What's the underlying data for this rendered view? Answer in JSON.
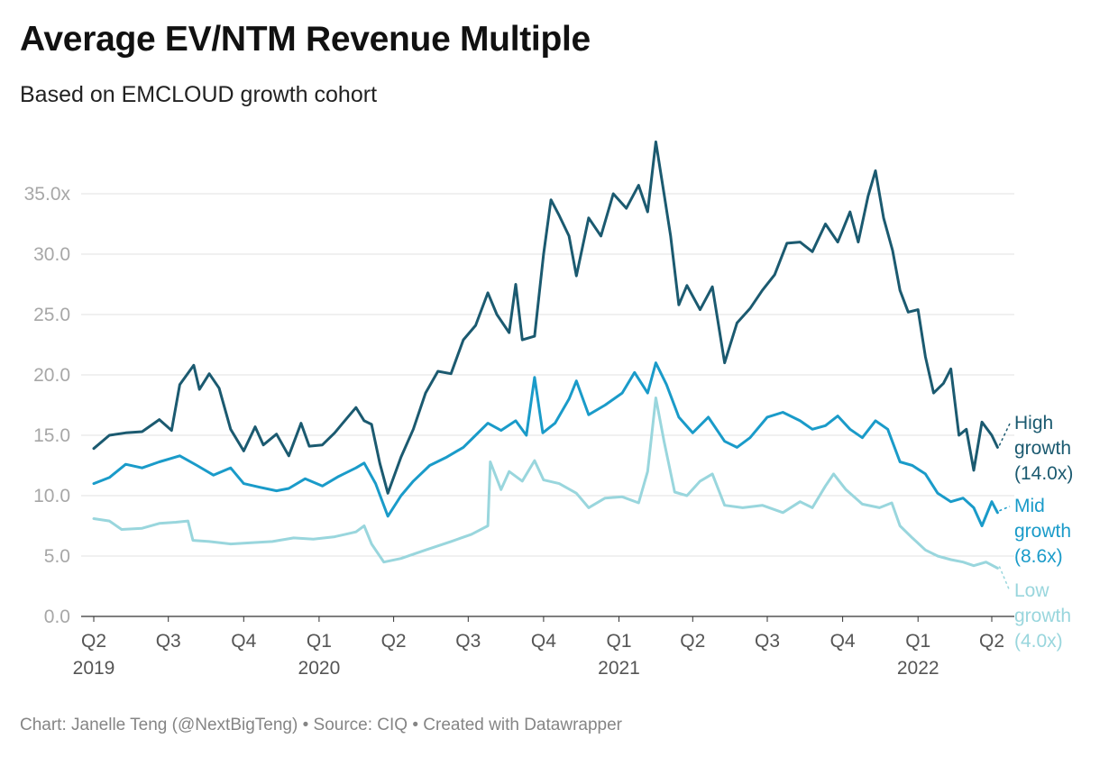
{
  "header": {
    "title": "Average EV/NTM Revenue Multiple",
    "subtitle": "Based on EMCLOUD growth cohort"
  },
  "footer": {
    "text": "Chart: Janelle Teng (@NextBigTeng) • Source: CIQ • Created with Datawrapper"
  },
  "chart_data": {
    "type": "line",
    "title": "Average EV/NTM Revenue Multiple",
    "subtitle": "Based on EMCLOUD growth cohort",
    "xlabel": "",
    "ylabel": "",
    "ylim": [
      0,
      35
    ],
    "xlim": [
      "2019-04-01",
      "2022-06-01"
    ],
    "grid": true,
    "legend": "direct labels at right end of lines",
    "y_ticks": [
      "0.0",
      "5.0",
      "10.0",
      "15.0",
      "20.0",
      "25.0",
      "30.0",
      "35.0x"
    ],
    "y_tick_values": [
      0,
      5,
      10,
      15,
      20,
      25,
      30,
      35
    ],
    "x_ticks": [
      {
        "date": "2019-04-01",
        "quarter": "Q2",
        "year": "2019"
      },
      {
        "date": "2019-07-01",
        "quarter": "Q3",
        "year": ""
      },
      {
        "date": "2019-10-01",
        "quarter": "Q4",
        "year": ""
      },
      {
        "date": "2020-01-01",
        "quarter": "Q1",
        "year": "2020"
      },
      {
        "date": "2020-04-01",
        "quarter": "Q2",
        "year": ""
      },
      {
        "date": "2020-07-01",
        "quarter": "Q3",
        "year": ""
      },
      {
        "date": "2020-10-01",
        "quarter": "Q4",
        "year": ""
      },
      {
        "date": "2021-01-01",
        "quarter": "Q1",
        "year": "2021"
      },
      {
        "date": "2021-04-01",
        "quarter": "Q2",
        "year": ""
      },
      {
        "date": "2021-07-01",
        "quarter": "Q3",
        "year": ""
      },
      {
        "date": "2021-10-01",
        "quarter": "Q4",
        "year": ""
      },
      {
        "date": "2022-01-01",
        "quarter": "Q1",
        "year": "2022"
      },
      {
        "date": "2022-04-01",
        "quarter": "Q2",
        "year": ""
      }
    ],
    "series": [
      {
        "name": "High growth (14.0x)",
        "label_lines": [
          "High",
          "growth",
          "(14.0x)"
        ],
        "color": "#1b5a70",
        "points": [
          [
            "2019-04-01",
            13.9
          ],
          [
            "2019-04-20",
            15.0
          ],
          [
            "2019-05-10",
            15.2
          ],
          [
            "2019-05-30",
            15.3
          ],
          [
            "2019-06-20",
            16.3
          ],
          [
            "2019-07-05",
            15.4
          ],
          [
            "2019-07-15",
            19.2
          ],
          [
            "2019-08-01",
            20.8
          ],
          [
            "2019-08-08",
            18.8
          ],
          [
            "2019-08-20",
            20.1
          ],
          [
            "2019-09-01",
            18.9
          ],
          [
            "2019-09-15",
            15.5
          ],
          [
            "2019-10-01",
            13.7
          ],
          [
            "2019-10-15",
            15.7
          ],
          [
            "2019-10-25",
            14.2
          ],
          [
            "2019-11-10",
            15.1
          ],
          [
            "2019-11-25",
            13.3
          ],
          [
            "2019-12-10",
            16.0
          ],
          [
            "2019-12-20",
            14.1
          ],
          [
            "2020-01-05",
            14.2
          ],
          [
            "2020-01-20",
            15.2
          ],
          [
            "2020-02-05",
            16.5
          ],
          [
            "2020-02-15",
            17.3
          ],
          [
            "2020-02-25",
            16.2
          ],
          [
            "2020-03-05",
            15.9
          ],
          [
            "2020-03-15",
            12.7
          ],
          [
            "2020-03-25",
            10.2
          ],
          [
            "2020-04-10",
            13.2
          ],
          [
            "2020-04-25",
            15.5
          ],
          [
            "2020-05-10",
            18.5
          ],
          [
            "2020-05-25",
            20.3
          ],
          [
            "2020-06-10",
            20.1
          ],
          [
            "2020-06-25",
            22.9
          ],
          [
            "2020-07-10",
            24.1
          ],
          [
            "2020-07-25",
            26.8
          ],
          [
            "2020-08-05",
            25.0
          ],
          [
            "2020-08-20",
            23.5
          ],
          [
            "2020-08-28",
            27.5
          ],
          [
            "2020-09-05",
            22.9
          ],
          [
            "2020-09-20",
            23.2
          ],
          [
            "2020-10-01",
            30.0
          ],
          [
            "2020-10-10",
            34.5
          ],
          [
            "2020-10-20",
            33.2
          ],
          [
            "2020-11-01",
            31.5
          ],
          [
            "2020-11-10",
            28.2
          ],
          [
            "2020-11-25",
            33.0
          ],
          [
            "2020-12-10",
            31.5
          ],
          [
            "2020-12-25",
            35.0
          ],
          [
            "2021-01-10",
            33.8
          ],
          [
            "2021-01-25",
            35.7
          ],
          [
            "2021-02-05",
            33.5
          ],
          [
            "2021-02-15",
            39.3
          ],
          [
            "2021-02-25",
            35.0
          ],
          [
            "2021-03-05",
            31.5
          ],
          [
            "2021-03-15",
            25.8
          ],
          [
            "2021-03-25",
            27.4
          ],
          [
            "2021-04-10",
            25.4
          ],
          [
            "2021-04-25",
            27.3
          ],
          [
            "2021-05-10",
            21.0
          ],
          [
            "2021-05-25",
            24.3
          ],
          [
            "2021-06-10",
            25.5
          ],
          [
            "2021-06-25",
            27.0
          ],
          [
            "2021-07-10",
            28.3
          ],
          [
            "2021-07-25",
            30.9
          ],
          [
            "2021-08-10",
            31.0
          ],
          [
            "2021-08-25",
            30.2
          ],
          [
            "2021-09-10",
            32.5
          ],
          [
            "2021-09-25",
            31.0
          ],
          [
            "2021-10-10",
            33.5
          ],
          [
            "2021-10-20",
            31.0
          ],
          [
            "2021-11-01",
            34.8
          ],
          [
            "2021-11-10",
            36.9
          ],
          [
            "2021-11-20",
            33.0
          ],
          [
            "2021-12-01",
            30.3
          ],
          [
            "2021-12-10",
            27.0
          ],
          [
            "2021-12-20",
            25.2
          ],
          [
            "2022-01-01",
            25.4
          ],
          [
            "2022-01-10",
            21.5
          ],
          [
            "2022-01-20",
            18.5
          ],
          [
            "2022-02-01",
            19.3
          ],
          [
            "2022-02-10",
            20.5
          ],
          [
            "2022-02-20",
            15.0
          ],
          [
            "2022-03-01",
            15.5
          ],
          [
            "2022-03-10",
            12.1
          ],
          [
            "2022-03-20",
            16.1
          ],
          [
            "2022-04-01",
            15.0
          ],
          [
            "2022-04-08",
            14.0
          ]
        ]
      },
      {
        "name": "Mid growth (8.6x)",
        "label_lines": [
          "Mid",
          "growth",
          "(8.6x)"
        ],
        "color": "#1a9bc9",
        "points": [
          [
            "2019-04-01",
            11.0
          ],
          [
            "2019-04-20",
            11.5
          ],
          [
            "2019-05-10",
            12.6
          ],
          [
            "2019-05-30",
            12.3
          ],
          [
            "2019-06-20",
            12.8
          ],
          [
            "2019-07-15",
            13.3
          ],
          [
            "2019-08-05",
            12.5
          ],
          [
            "2019-08-25",
            11.7
          ],
          [
            "2019-09-15",
            12.3
          ],
          [
            "2019-10-01",
            11.0
          ],
          [
            "2019-10-20",
            10.7
          ],
          [
            "2019-11-10",
            10.4
          ],
          [
            "2019-11-25",
            10.6
          ],
          [
            "2019-12-15",
            11.4
          ],
          [
            "2020-01-05",
            10.8
          ],
          [
            "2020-01-25",
            11.6
          ],
          [
            "2020-02-15",
            12.3
          ],
          [
            "2020-02-25",
            12.7
          ],
          [
            "2020-03-10",
            11.0
          ],
          [
            "2020-03-25",
            8.3
          ],
          [
            "2020-04-10",
            10.0
          ],
          [
            "2020-04-25",
            11.2
          ],
          [
            "2020-05-15",
            12.5
          ],
          [
            "2020-06-05",
            13.2
          ],
          [
            "2020-06-25",
            14.0
          ],
          [
            "2020-07-10",
            15.0
          ],
          [
            "2020-07-25",
            16.0
          ],
          [
            "2020-08-10",
            15.4
          ],
          [
            "2020-08-28",
            16.2
          ],
          [
            "2020-09-10",
            15.0
          ],
          [
            "2020-09-20",
            19.8
          ],
          [
            "2020-09-30",
            15.2
          ],
          [
            "2020-10-15",
            16.0
          ],
          [
            "2020-11-01",
            18.0
          ],
          [
            "2020-11-10",
            19.5
          ],
          [
            "2020-11-25",
            16.7
          ],
          [
            "2020-12-15",
            17.5
          ],
          [
            "2021-01-05",
            18.5
          ],
          [
            "2021-01-20",
            20.2
          ],
          [
            "2021-02-05",
            18.5
          ],
          [
            "2021-02-15",
            21.0
          ],
          [
            "2021-02-28",
            19.2
          ],
          [
            "2021-03-15",
            16.5
          ],
          [
            "2021-04-01",
            15.2
          ],
          [
            "2021-04-20",
            16.5
          ],
          [
            "2021-05-10",
            14.5
          ],
          [
            "2021-05-25",
            14.0
          ],
          [
            "2021-06-10",
            14.8
          ],
          [
            "2021-07-01",
            16.5
          ],
          [
            "2021-07-20",
            16.9
          ],
          [
            "2021-08-10",
            16.2
          ],
          [
            "2021-08-25",
            15.5
          ],
          [
            "2021-09-10",
            15.8
          ],
          [
            "2021-09-25",
            16.6
          ],
          [
            "2021-10-10",
            15.5
          ],
          [
            "2021-10-25",
            14.8
          ],
          [
            "2021-11-10",
            16.2
          ],
          [
            "2021-11-25",
            15.5
          ],
          [
            "2021-12-10",
            12.8
          ],
          [
            "2021-12-25",
            12.5
          ],
          [
            "2022-01-10",
            11.8
          ],
          [
            "2022-01-25",
            10.2
          ],
          [
            "2022-02-10",
            9.5
          ],
          [
            "2022-02-25",
            9.8
          ],
          [
            "2022-03-10",
            9.0
          ],
          [
            "2022-03-20",
            7.5
          ],
          [
            "2022-04-01",
            9.5
          ],
          [
            "2022-04-08",
            8.6
          ]
        ]
      },
      {
        "name": "Low growth (4.0x)",
        "label_lines": [
          "Low",
          "growth",
          "(4.0x)"
        ],
        "color": "#99d6dd",
        "points": [
          [
            "2019-04-01",
            8.1
          ],
          [
            "2019-04-20",
            7.9
          ],
          [
            "2019-05-05",
            7.2
          ],
          [
            "2019-05-30",
            7.3
          ],
          [
            "2019-06-20",
            7.7
          ],
          [
            "2019-07-10",
            7.8
          ],
          [
            "2019-07-25",
            7.9
          ],
          [
            "2019-07-31",
            6.3
          ],
          [
            "2019-08-20",
            6.2
          ],
          [
            "2019-09-15",
            6.0
          ],
          [
            "2019-10-10",
            6.1
          ],
          [
            "2019-11-05",
            6.2
          ],
          [
            "2019-12-01",
            6.5
          ],
          [
            "2019-12-25",
            6.4
          ],
          [
            "2020-01-20",
            6.6
          ],
          [
            "2020-02-15",
            7.0
          ],
          [
            "2020-02-25",
            7.5
          ],
          [
            "2020-03-05",
            6.0
          ],
          [
            "2020-03-20",
            4.5
          ],
          [
            "2020-04-10",
            4.8
          ],
          [
            "2020-05-10",
            5.5
          ],
          [
            "2020-06-10",
            6.2
          ],
          [
            "2020-07-05",
            6.8
          ],
          [
            "2020-07-25",
            7.5
          ],
          [
            "2020-07-28",
            12.8
          ],
          [
            "2020-08-10",
            10.5
          ],
          [
            "2020-08-20",
            12.0
          ],
          [
            "2020-09-05",
            11.2
          ],
          [
            "2020-09-20",
            12.9
          ],
          [
            "2020-10-01",
            11.3
          ],
          [
            "2020-10-20",
            11.0
          ],
          [
            "2020-11-10",
            10.2
          ],
          [
            "2020-11-25",
            9.0
          ],
          [
            "2020-12-15",
            9.8
          ],
          [
            "2021-01-05",
            9.9
          ],
          [
            "2021-01-25",
            9.4
          ],
          [
            "2021-02-05",
            12.0
          ],
          [
            "2021-02-15",
            18.1
          ],
          [
            "2021-02-25",
            14.5
          ],
          [
            "2021-03-10",
            10.3
          ],
          [
            "2021-03-25",
            10.0
          ],
          [
            "2021-04-10",
            11.2
          ],
          [
            "2021-04-25",
            11.8
          ],
          [
            "2021-05-10",
            9.2
          ],
          [
            "2021-06-01",
            9.0
          ],
          [
            "2021-06-25",
            9.2
          ],
          [
            "2021-07-20",
            8.6
          ],
          [
            "2021-08-10",
            9.5
          ],
          [
            "2021-08-25",
            9.0
          ],
          [
            "2021-09-10",
            10.8
          ],
          [
            "2021-09-20",
            11.8
          ],
          [
            "2021-10-05",
            10.5
          ],
          [
            "2021-10-25",
            9.3
          ],
          [
            "2021-11-15",
            9.0
          ],
          [
            "2021-11-30",
            9.4
          ],
          [
            "2021-12-10",
            7.5
          ],
          [
            "2021-12-25",
            6.5
          ],
          [
            "2022-01-10",
            5.5
          ],
          [
            "2022-01-25",
            5.0
          ],
          [
            "2022-02-10",
            4.7
          ],
          [
            "2022-02-25",
            4.5
          ],
          [
            "2022-03-10",
            4.2
          ],
          [
            "2022-03-25",
            4.5
          ],
          [
            "2022-04-08",
            4.0
          ]
        ]
      }
    ]
  }
}
